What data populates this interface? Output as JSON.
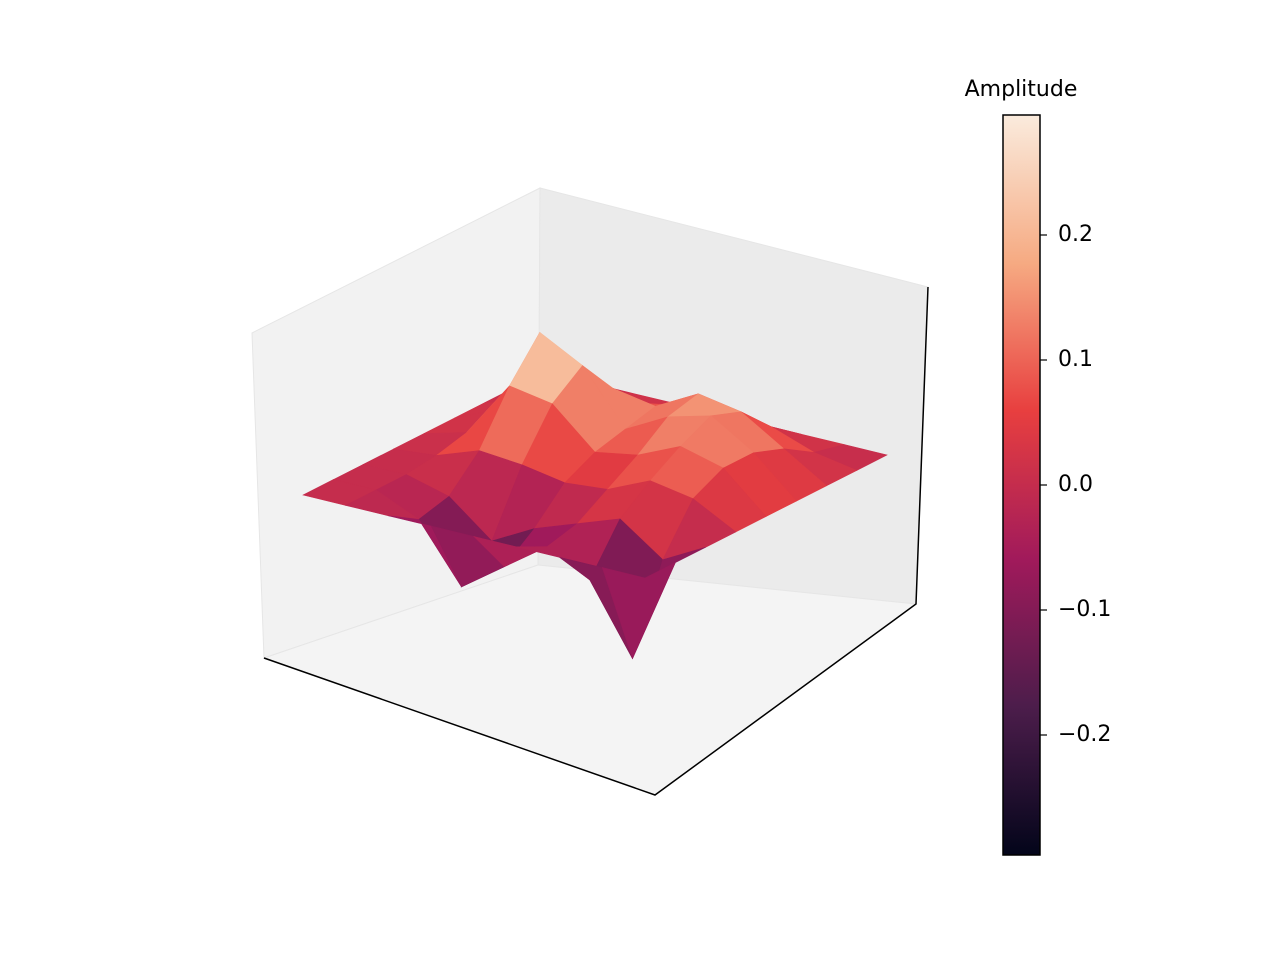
{
  "chart_data": {
    "type": "surface",
    "colorbar_label": "Amplitude",
    "z": [
      [
        0,
        0,
        0,
        0,
        0,
        0,
        0,
        0,
        0
      ],
      [
        0,
        0,
        0,
        0.01,
        0.03,
        0.05,
        0.03,
        0.01,
        0
      ],
      [
        0,
        -0.05,
        -0.03,
        0.05,
        0.18,
        0.28,
        0.15,
        0.03,
        0
      ],
      [
        0,
        -0.2,
        -0.12,
        0.04,
        0.16,
        0.22,
        0.12,
        0.04,
        0
      ],
      [
        0,
        -0.12,
        -0.06,
        0.02,
        0.06,
        0.08,
        0.1,
        0.06,
        0
      ],
      [
        0,
        -0.04,
        -0.02,
        0.03,
        0.08,
        0.14,
        0.16,
        0.08,
        0
      ],
      [
        0,
        -0.1,
        0.02,
        0.08,
        0.13,
        0.17,
        0.14,
        0.06,
        0
      ],
      [
        0,
        -0.28,
        -0.06,
        0.06,
        0.1,
        0.1,
        0.07,
        0.02,
        0
      ],
      [
        0,
        0,
        0,
        0,
        0,
        0,
        0,
        0,
        0
      ]
    ],
    "clim": [
      -0.296,
      0.296
    ],
    "cticks": [
      0.2,
      0.1,
      {
        "value": 0,
        "label": "0.0"
      },
      {
        "value": -0.1,
        "label": "−0.1"
      },
      {
        "value": -0.2,
        "label": "−0.2"
      }
    ],
    "cmap": [
      "#03051a",
      "#4c1d4b",
      "#a11a5b",
      "#e83f3f",
      "#f6aa82",
      "#faebdd"
    ]
  }
}
